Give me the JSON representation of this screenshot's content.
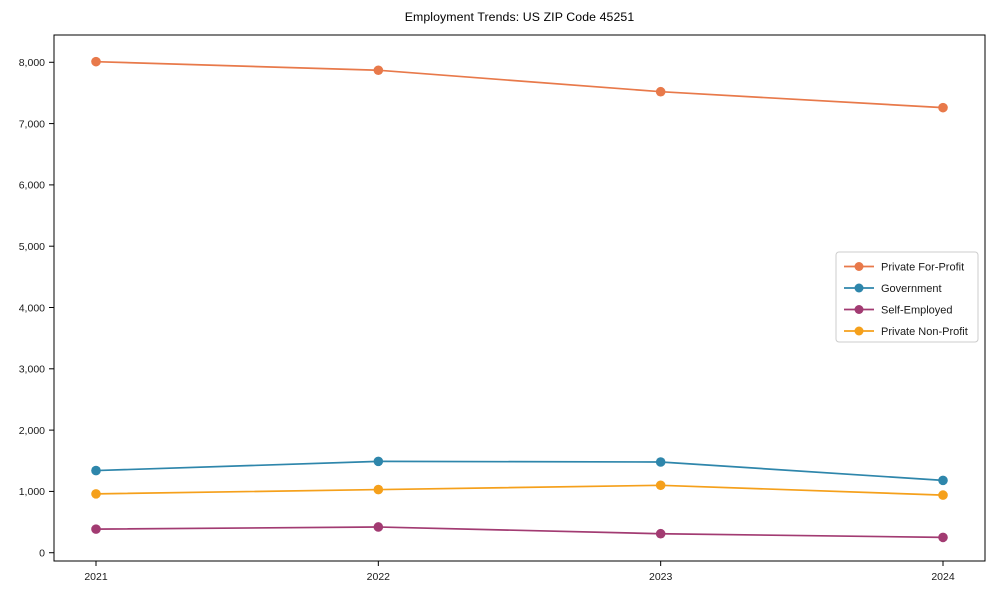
{
  "title": "Employment Trends: US ZIP Code 45251",
  "chart_data": {
    "type": "line",
    "title": "Employment Trends: US ZIP Code 45251",
    "x": [
      "2021",
      "2022",
      "2023",
      "2024"
    ],
    "series": [
      {
        "name": "Private For-Profit",
        "color": "#E8794A",
        "values": [
          8010,
          7870,
          7520,
          7260
        ]
      },
      {
        "name": "Government",
        "color": "#2E86AB",
        "values": [
          1340,
          1490,
          1480,
          1180
        ]
      },
      {
        "name": "Self-Employed",
        "color": "#A23B72",
        "values": [
          385,
          420,
          310,
          250
        ]
      },
      {
        "name": "Private Non-Profit",
        "color": "#F5A01B",
        "values": [
          960,
          1030,
          1100,
          940
        ]
      }
    ],
    "xlabel": "",
    "ylabel": "",
    "ylim": [
      0,
      8000
    ],
    "yticks": [
      0,
      1000,
      2000,
      3000,
      4000,
      5000,
      6000,
      7000,
      8000
    ],
    "grid": false,
    "legend_position": "right-middle",
    "marker": "circle",
    "background": "#ffffff",
    "axis_color": "#000000",
    "legend_border_color": "#cccccc"
  }
}
